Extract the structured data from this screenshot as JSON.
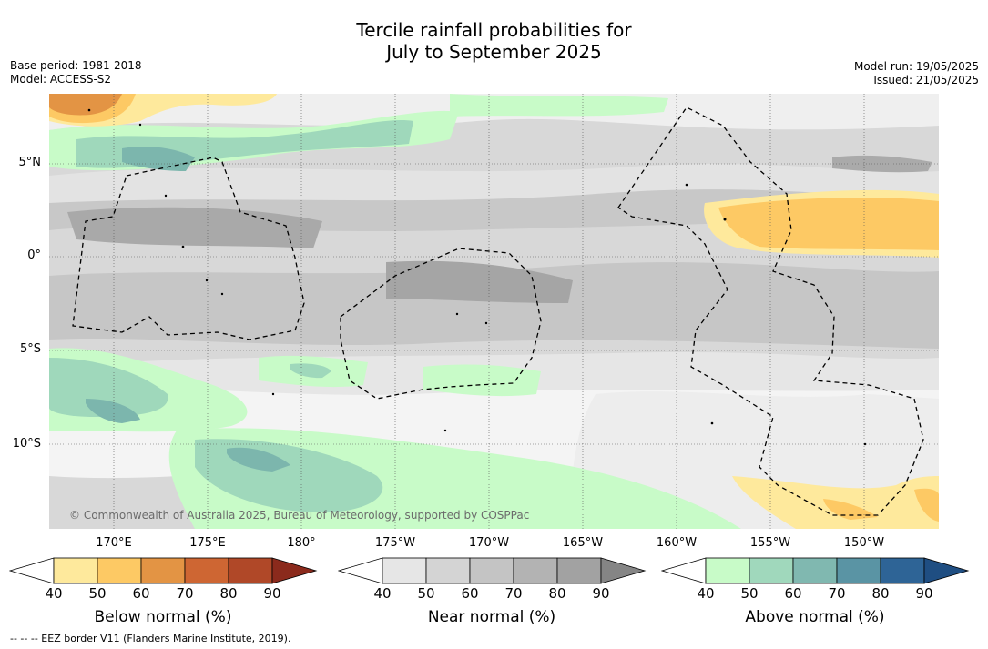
{
  "title_line1": "Tercile rainfall probabilities for",
  "title_line2": "July to September 2025",
  "base_period": "Base period: 1981-2018",
  "model": "Model: ACCESS-S2",
  "model_run": "Model run: 19/05/2025",
  "issued": "Issued: 21/05/2025",
  "copyright": "© Commonwealth of Australia 2025, Bureau of Meteorology, supported by COSPPac",
  "latitude_labels": [
    "5°N",
    "0°",
    "5°S",
    "10°S"
  ],
  "longitude_labels": [
    "170°E",
    "175°E",
    "180°",
    "175°W",
    "170°W",
    "165°W",
    "160°W",
    "155°W",
    "150°W"
  ],
  "colorbars": [
    {
      "title": "Below normal (%)",
      "ticks": [
        "40",
        "50",
        "60",
        "70",
        "80",
        "90"
      ],
      "colors": [
        "#ffffff",
        "#fee99c",
        "#fdc964",
        "#e39444",
        "#ce6633",
        "#b04828",
        "#8b2a1c"
      ]
    },
    {
      "title": "Near normal (%)",
      "ticks": [
        "40",
        "50",
        "60",
        "70",
        "80",
        "90"
      ],
      "colors": [
        "#ffffff",
        "#e6e6e6",
        "#d4d4d4",
        "#c4c4c4",
        "#b3b3b3",
        "#a2a2a2",
        "#858585"
      ]
    },
    {
      "title": "Above normal (%)",
      "ticks": [
        "40",
        "50",
        "60",
        "70",
        "80",
        "90"
      ],
      "colors": [
        "#ffffff",
        "#c8fbc8",
        "#a0d8bc",
        "#80b8b0",
        "#5a94a4",
        "#2e6496",
        "#1f4e82"
      ]
    }
  ],
  "footnote": "--  --  -- EEZ border V11 (Flanders Marine Institute, 2019)."
}
